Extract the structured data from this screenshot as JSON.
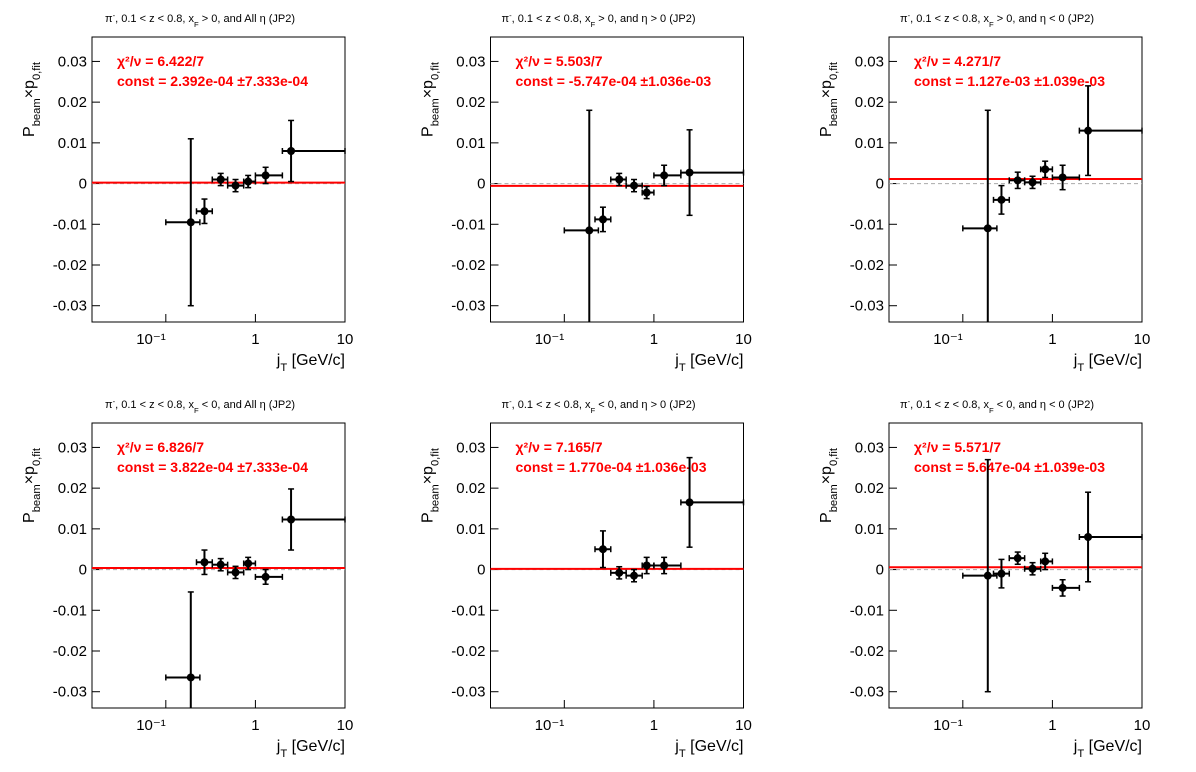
{
  "chart_data": [
    {
      "type": "errorbar",
      "title": [
        {
          "text": "π"
        },
        {
          "text": "-",
          "shift": "sup"
        },
        {
          "text": ", 0.1 < z < 0.8, x"
        },
        {
          "text": "F",
          "shift": "sub"
        },
        {
          "text": " > 0, and All η (JP2)"
        }
      ],
      "ylabel": [
        {
          "text": "P"
        },
        {
          "text": "beam",
          "shift": "sub"
        },
        {
          "text": "×p"
        },
        {
          "text": "0,fit",
          "shift": "sub"
        }
      ],
      "xlabel": [
        {
          "text": "j"
        },
        {
          "text": "T",
          "shift": "sub"
        },
        {
          "text": " [GeV/c]"
        }
      ],
      "annotations": [
        "χ²/ν = 6.422/7",
        "const = 2.392e-04  ±7.333e-04"
      ],
      "fit_const": 0.0002392,
      "fit_error": 0.0007333,
      "x": [
        0.19,
        0.27,
        0.41,
        0.6,
        0.83,
        1.3,
        2.5
      ],
      "x_lo": [
        0.1,
        0.22,
        0.33,
        0.49,
        0.74,
        1,
        2
      ],
      "x_hi": [
        0.24,
        0.33,
        0.49,
        0.74,
        1,
        2,
        10
      ],
      "values": [
        -0.0095,
        -0.0068,
        0.001,
        -0.0005,
        0.0005,
        0.002,
        0.008
      ],
      "errors": [
        0.0205,
        0.003,
        0.0015,
        0.0015,
        0.0015,
        0.002,
        0.0075
      ],
      "xlim": [
        0.015,
        10
      ],
      "ylim": [
        -0.034,
        0.036
      ],
      "log_x": true,
      "xticks": [
        {
          "value": 0.1,
          "label": "10⁻¹"
        },
        1,
        10
      ],
      "yticks": [
        -0.03,
        -0.02,
        -0.01,
        0,
        0.01,
        0.02,
        0.03
      ],
      "color": "#000000",
      "fit_color": "#ff0000"
    },
    {
      "type": "errorbar",
      "title": [
        {
          "text": "π"
        },
        {
          "text": "-",
          "shift": "sup"
        },
        {
          "text": ", 0.1 < z < 0.8, x"
        },
        {
          "text": "F",
          "shift": "sub"
        },
        {
          "text": " > 0, and  η > 0 (JP2)"
        }
      ],
      "ylabel": [
        {
          "text": "P"
        },
        {
          "text": "beam",
          "shift": "sub"
        },
        {
          "text": "×p"
        },
        {
          "text": "0,fit",
          "shift": "sub"
        }
      ],
      "xlabel": [
        {
          "text": "j"
        },
        {
          "text": "T",
          "shift": "sub"
        },
        {
          "text": " [GeV/c]"
        }
      ],
      "annotations": [
        "χ²/ν = 5.503/7",
        "const = -5.747e-04  ±1.036e-03"
      ],
      "fit_const": -0.0005747,
      "fit_error": 0.001036,
      "x": [
        0.19,
        0.27,
        0.41,
        0.6,
        0.83,
        1.3,
        2.5
      ],
      "x_lo": [
        0.1,
        0.22,
        0.33,
        0.49,
        0.74,
        1,
        2
      ],
      "x_hi": [
        0.24,
        0.33,
        0.49,
        0.74,
        1,
        2,
        10
      ],
      "values": [
        -0.0115,
        -0.0088,
        0.001,
        -0.0005,
        -0.0022,
        0.002,
        0.0027
      ],
      "errors": [
        0.0295,
        0.003,
        0.0015,
        0.0015,
        0.0015,
        0.0025,
        0.0105
      ],
      "xlim": [
        0.015,
        10
      ],
      "ylim": [
        -0.034,
        0.036
      ],
      "log_x": true,
      "xticks": [
        {
          "value": 0.1,
          "label": "10⁻¹"
        },
        1,
        10
      ],
      "yticks": [
        -0.03,
        -0.02,
        -0.01,
        0,
        0.01,
        0.02,
        0.03
      ],
      "color": "#000000",
      "fit_color": "#ff0000"
    },
    {
      "type": "errorbar",
      "title": [
        {
          "text": "π"
        },
        {
          "text": "-",
          "shift": "sup"
        },
        {
          "text": ", 0.1 < z < 0.8, x"
        },
        {
          "text": "F",
          "shift": "sub"
        },
        {
          "text": " > 0, and  η < 0 (JP2)"
        }
      ],
      "ylabel": [
        {
          "text": "P"
        },
        {
          "text": "beam",
          "shift": "sub"
        },
        {
          "text": "×p"
        },
        {
          "text": "0,fit",
          "shift": "sub"
        }
      ],
      "xlabel": [
        {
          "text": "j"
        },
        {
          "text": "T",
          "shift": "sub"
        },
        {
          "text": " [GeV/c]"
        }
      ],
      "annotations": [
        "χ²/ν = 4.271/7",
        "const = 1.127e-03  ±1.039e-03"
      ],
      "fit_const": 0.001127,
      "fit_error": 0.001039,
      "x": [
        0.19,
        0.27,
        0.41,
        0.6,
        0.83,
        1.3,
        2.5
      ],
      "x_lo": [
        0.1,
        0.22,
        0.33,
        0.49,
        0.74,
        1,
        2
      ],
      "x_hi": [
        0.24,
        0.33,
        0.49,
        0.74,
        1,
        2,
        10
      ],
      "values": [
        -0.011,
        -0.004,
        0.0008,
        0.0003,
        0.0035,
        0.0015,
        0.013
      ],
      "errors": [
        0.029,
        0.0035,
        0.002,
        0.0015,
        0.002,
        0.003,
        0.011
      ],
      "xlim": [
        0.015,
        10
      ],
      "ylim": [
        -0.034,
        0.036
      ],
      "log_x": true,
      "xticks": [
        {
          "value": 0.1,
          "label": "10⁻¹"
        },
        1,
        10
      ],
      "yticks": [
        -0.03,
        -0.02,
        -0.01,
        0,
        0.01,
        0.02,
        0.03
      ],
      "color": "#000000",
      "fit_color": "#ff0000"
    },
    {
      "type": "errorbar",
      "title": [
        {
          "text": "π"
        },
        {
          "text": "-",
          "shift": "sup"
        },
        {
          "text": ", 0.1 < z < 0.8, x"
        },
        {
          "text": "F",
          "shift": "sub"
        },
        {
          "text": " < 0, and All η (JP2)"
        }
      ],
      "ylabel": [
        {
          "text": "P"
        },
        {
          "text": "beam",
          "shift": "sub"
        },
        {
          "text": "×p"
        },
        {
          "text": "0,fit",
          "shift": "sub"
        }
      ],
      "xlabel": [
        {
          "text": "j"
        },
        {
          "text": "T",
          "shift": "sub"
        },
        {
          "text": " [GeV/c]"
        }
      ],
      "annotations": [
        "χ²/ν = 6.826/7",
        "const = 3.822e-04  ±7.333e-04"
      ],
      "fit_const": 0.0003822,
      "fit_error": 0.0007333,
      "x": [
        0.19,
        0.27,
        0.41,
        0.6,
        0.83,
        1.3,
        2.5
      ],
      "x_lo": [
        0.1,
        0.22,
        0.33,
        0.49,
        0.74,
        1,
        2
      ],
      "x_hi": [
        0.24,
        0.33,
        0.49,
        0.74,
        1,
        2,
        10
      ],
      "values": [
        -0.0265,
        0.0018,
        0.0012,
        -0.0007,
        0.0015,
        -0.0018,
        0.0123
      ],
      "errors": [
        0.021,
        0.003,
        0.0015,
        0.0015,
        0.0015,
        0.0018,
        0.0075
      ],
      "xlim": [
        0.015,
        10
      ],
      "ylim": [
        -0.034,
        0.036
      ],
      "log_x": true,
      "xticks": [
        {
          "value": 0.1,
          "label": "10⁻¹"
        },
        1,
        10
      ],
      "yticks": [
        -0.03,
        -0.02,
        -0.01,
        0,
        0.01,
        0.02,
        0.03
      ],
      "color": "#000000",
      "fit_color": "#ff0000"
    },
    {
      "type": "errorbar",
      "title": [
        {
          "text": "π"
        },
        {
          "text": "-",
          "shift": "sup"
        },
        {
          "text": ", 0.1 < z < 0.8, x"
        },
        {
          "text": "F",
          "shift": "sub"
        },
        {
          "text": " < 0, and  η > 0 (JP2)"
        }
      ],
      "ylabel": [
        {
          "text": "P"
        },
        {
          "text": "beam",
          "shift": "sub"
        },
        {
          "text": "×p"
        },
        {
          "text": "0,fit",
          "shift": "sub"
        }
      ],
      "xlabel": [
        {
          "text": "j"
        },
        {
          "text": "T",
          "shift": "sub"
        },
        {
          "text": " [GeV/c]"
        }
      ],
      "annotations": [
        "χ²/ν = 7.165/7",
        "const = 1.770e-04  ±1.036e-03"
      ],
      "fit_const": 0.000177,
      "fit_error": 0.001036,
      "x": [
        0.27,
        0.41,
        0.6,
        0.83,
        1.3,
        2.5
      ],
      "x_lo": [
        0.22,
        0.33,
        0.49,
        0.74,
        1,
        2
      ],
      "x_hi": [
        0.33,
        0.49,
        0.74,
        1,
        2,
        10
      ],
      "values": [
        0.005,
        -0.0008,
        -0.0015,
        0.001,
        0.001,
        0.0165
      ],
      "errors": [
        0.0045,
        0.0015,
        0.0015,
        0.002,
        0.002,
        0.011
      ],
      "xlim": [
        0.015,
        10
      ],
      "ylim": [
        -0.034,
        0.036
      ],
      "log_x": true,
      "xticks": [
        {
          "value": 0.1,
          "label": "10⁻¹"
        },
        1,
        10
      ],
      "yticks": [
        -0.03,
        -0.02,
        -0.01,
        0,
        0.01,
        0.02,
        0.03
      ],
      "color": "#000000",
      "fit_color": "#ff0000"
    },
    {
      "type": "errorbar",
      "title": [
        {
          "text": "π"
        },
        {
          "text": "-",
          "shift": "sup"
        },
        {
          "text": ", 0.1 < z < 0.8, x"
        },
        {
          "text": "F",
          "shift": "sub"
        },
        {
          "text": " < 0, and  η < 0 (JP2)"
        }
      ],
      "ylabel": [
        {
          "text": "P"
        },
        {
          "text": "beam",
          "shift": "sub"
        },
        {
          "text": "×p"
        },
        {
          "text": "0,fit",
          "shift": "sub"
        }
      ],
      "xlabel": [
        {
          "text": "j"
        },
        {
          "text": "T",
          "shift": "sub"
        },
        {
          "text": " [GeV/c]"
        }
      ],
      "annotations": [
        "χ²/ν = 5.571/7",
        "const = 5.647e-04  ±1.039e-03"
      ],
      "fit_const": 0.0005647,
      "fit_error": 0.001039,
      "x": [
        0.19,
        0.27,
        0.41,
        0.6,
        0.83,
        1.3,
        2.5
      ],
      "x_lo": [
        0.1,
        0.22,
        0.33,
        0.49,
        0.74,
        1,
        2
      ],
      "x_hi": [
        0.24,
        0.33,
        0.49,
        0.74,
        1,
        2,
        10
      ],
      "values": [
        -0.0015,
        -0.001,
        0.0028,
        0.0002,
        0.002,
        -0.0045,
        0.008
      ],
      "errors": [
        0.0285,
        0.0035,
        0.0015,
        0.0015,
        0.002,
        0.002,
        0.011
      ],
      "xlim": [
        0.015,
        10
      ],
      "ylim": [
        -0.034,
        0.036
      ],
      "log_x": true,
      "xticks": [
        {
          "value": 0.1,
          "label": "10⁻¹"
        },
        1,
        10
      ],
      "yticks": [
        -0.03,
        -0.02,
        -0.01,
        0,
        0.01,
        0.02,
        0.03
      ],
      "color": "#000000",
      "fit_color": "#ff0000"
    }
  ]
}
